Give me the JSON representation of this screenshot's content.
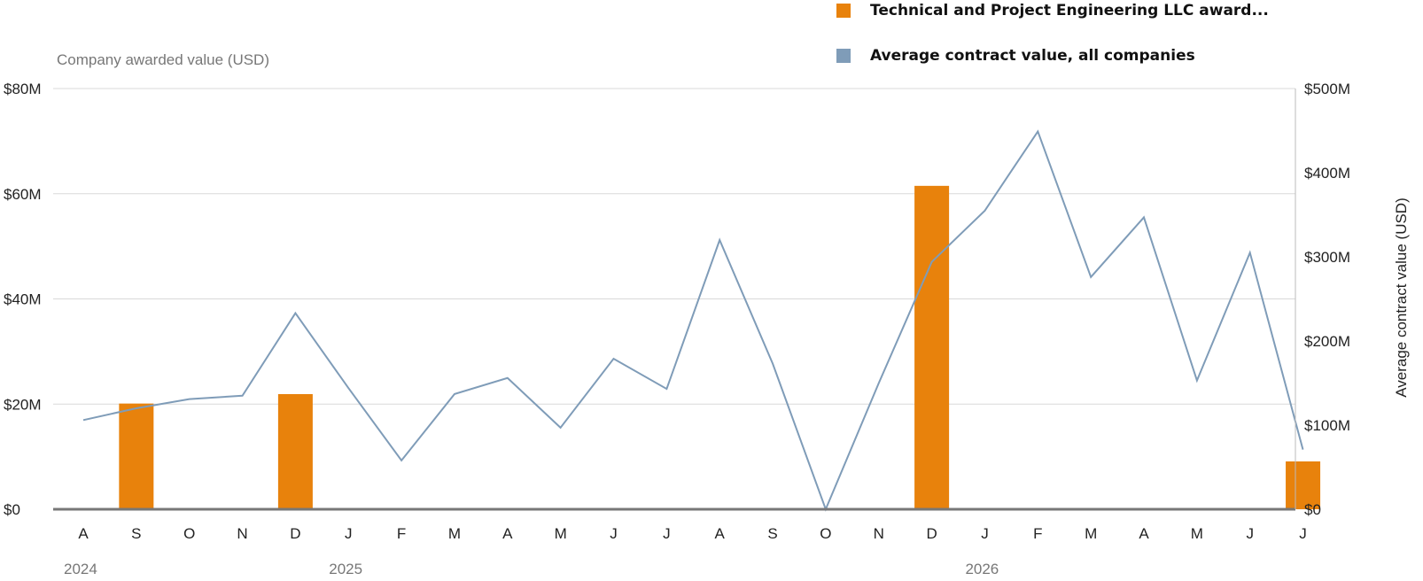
{
  "chart_data": {
    "type": "bar",
    "combo": "bar + line, dual y-axis",
    "legend_position": "top-right",
    "grid": true,
    "categories": [
      "A",
      "S",
      "O",
      "N",
      "D",
      "J",
      "F",
      "M",
      "A",
      "M",
      "J",
      "J",
      "A",
      "S",
      "O",
      "N",
      "D",
      "J",
      "F",
      "M",
      "A",
      "M",
      "J",
      "J"
    ],
    "year_labels": [
      {
        "index": 0,
        "label": "2024"
      },
      {
        "index": 5,
        "label": "2025"
      },
      {
        "index": 17,
        "label": "2026"
      }
    ],
    "series": [
      {
        "name": "Technical and Project Engineering LLC award...",
        "type": "bar",
        "axis": "left",
        "color": "#e8820c",
        "values": [
          0,
          20.1,
          0,
          0,
          21.9,
          0,
          0,
          0,
          0,
          0,
          0,
          0,
          0,
          0,
          0,
          0,
          61.5,
          0,
          0,
          0,
          0,
          0,
          0,
          9.1
        ]
      },
      {
        "name": "Average contract value, all companies",
        "type": "line",
        "axis": "right",
        "color": "#7f9cb8",
        "values": [
          106,
          120,
          131,
          135,
          233,
          144,
          58,
          137,
          156,
          97,
          179,
          143,
          320,
          173,
          0,
          150,
          294,
          355,
          449,
          276,
          347,
          153,
          305,
          71
        ]
      }
    ],
    "y_left": {
      "label": "Company awarded value (USD)",
      "range": [
        0,
        80
      ],
      "ticks": [
        {
          "value": 0,
          "label": "$0"
        },
        {
          "value": 20,
          "label": "$20M"
        },
        {
          "value": 40,
          "label": "$40M"
        },
        {
          "value": 60,
          "label": "$60M"
        },
        {
          "value": 80,
          "label": "$80M"
        }
      ]
    },
    "y_right": {
      "label": "Average contract value (USD)",
      "range": [
        0,
        500
      ],
      "ticks": [
        {
          "value": 0,
          "label": "$0"
        },
        {
          "value": 100,
          "label": "$100M"
        },
        {
          "value": 200,
          "label": "$200M"
        },
        {
          "value": 300,
          "label": "$300M"
        },
        {
          "value": 400,
          "label": "$400M"
        },
        {
          "value": 500,
          "label": "$500M"
        }
      ]
    }
  }
}
